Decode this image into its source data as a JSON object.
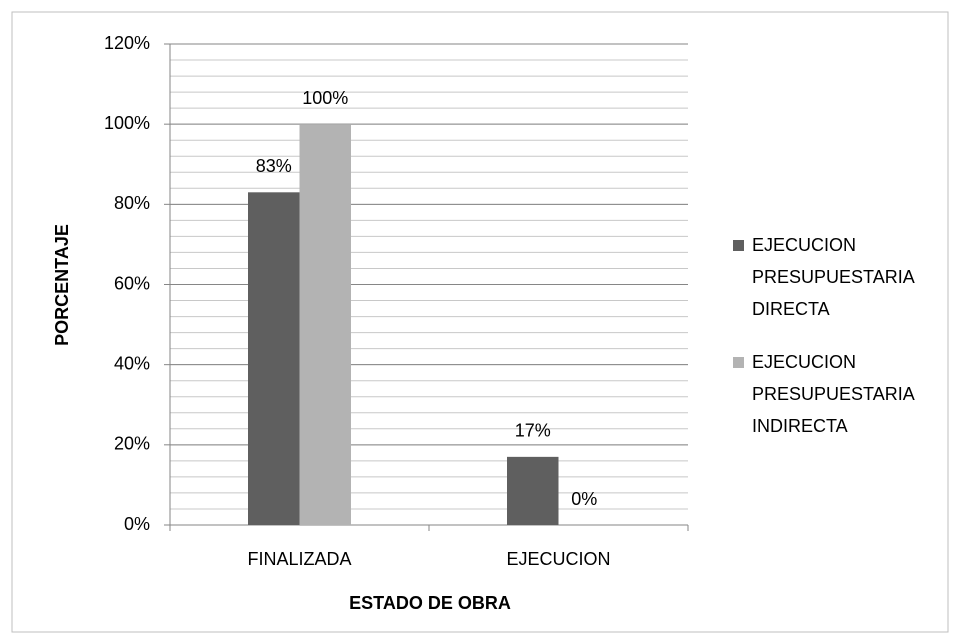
{
  "chart_data": {
    "type": "bar",
    "x_label": "ESTADO DE OBRA",
    "y_label": "PORCENTAJE",
    "categories": [
      "FINALIZADA",
      "EJECUCION"
    ],
    "series": [
      {
        "name": "EJECUCION PRESUPUESTARIA DIRECTA",
        "color": "#5f5f5f",
        "values": [
          83,
          17
        ],
        "value_labels": [
          "83%",
          "17%"
        ]
      },
      {
        "name": "EJECUCION PRESUPUESTARIA INDIRECTA",
        "color": "#b3b3b3",
        "values": [
          100,
          0
        ],
        "value_labels": [
          "100%",
          "0%"
        ]
      }
    ],
    "ylim": [
      0,
      120
    ],
    "yticks": [
      {
        "value": 0,
        "label": "0%"
      },
      {
        "value": 20,
        "label": "20%"
      },
      {
        "value": 40,
        "label": "40%"
      },
      {
        "value": 60,
        "label": "60%"
      },
      {
        "value": 80,
        "label": "80%"
      },
      {
        "value": 100,
        "label": "100%"
      },
      {
        "value": 120,
        "label": "120%"
      }
    ],
    "grid": true,
    "minor_grid_step": 4,
    "legend": "right"
  }
}
